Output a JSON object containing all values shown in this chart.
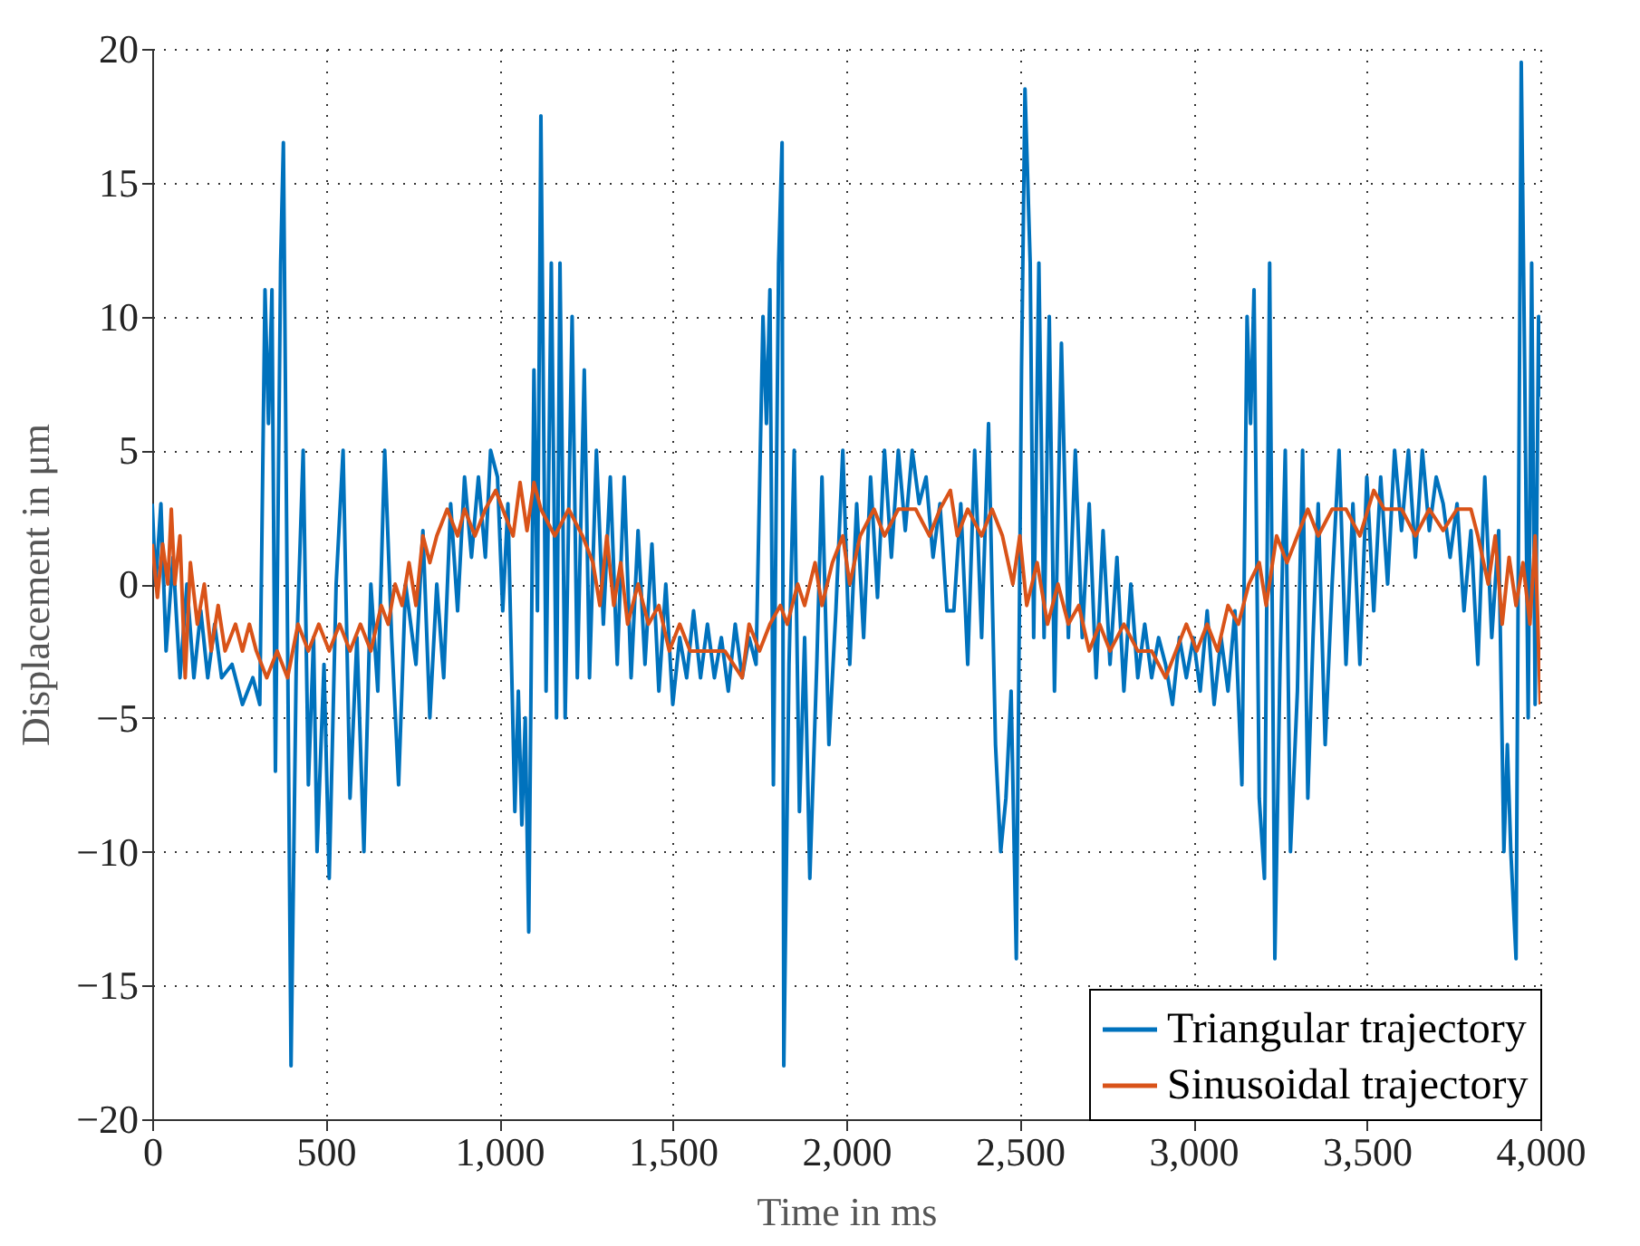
{
  "chart_data": {
    "type": "line",
    "xlabel": "Time in ms",
    "ylabel": "Displacement in μm",
    "xlim": [
      0,
      4000
    ],
    "ylim": [
      -20,
      20
    ],
    "xticks": [
      0,
      500,
      {
        "value": 1000,
        "label": "1,000"
      },
      {
        "value": 1500,
        "label": "1,500"
      },
      {
        "value": 2000,
        "label": "2,000"
      },
      {
        "value": 2500,
        "label": "2,500"
      },
      {
        "value": 3000,
        "label": "3,000"
      },
      {
        "value": 3500,
        "label": "3,500"
      },
      {
        "value": 4000,
        "label": "4,000"
      }
    ],
    "yticks": [
      {
        "value": -20,
        "label": "−20"
      },
      {
        "value": -15,
        "label": "−15"
      },
      {
        "value": -10,
        "label": "−10"
      },
      {
        "value": -5,
        "label": "−5"
      },
      0,
      5,
      10,
      15,
      20
    ],
    "grid": true,
    "legend": "bottom right",
    "line_style": "solid",
    "series": [
      {
        "name": "Triangular trajectory",
        "color": "#0072bd",
        "x": [
          0,
          10,
          25,
          40,
          60,
          80,
          100,
          120,
          140,
          160,
          180,
          200,
          230,
          260,
          290,
          310,
          325,
          335,
          345,
          355,
          370,
          378,
          390,
          400,
          415,
          435,
          450,
          465,
          475,
          495,
          510,
          530,
          550,
          570,
          590,
          610,
          630,
          650,
          670,
          690,
          710,
          730,
          760,
          780,
          800,
          820,
          840,
          860,
          880,
          900,
          920,
          940,
          960,
          975,
          995,
          1010,
          1025,
          1045,
          1055,
          1065,
          1075,
          1085,
          1100,
          1110,
          1120,
          1135,
          1150,
          1165,
          1175,
          1190,
          1210,
          1225,
          1245,
          1260,
          1280,
          1300,
          1320,
          1340,
          1360,
          1380,
          1400,
          1420,
          1440,
          1460,
          1480,
          1500,
          1520,
          1540,
          1560,
          1580,
          1600,
          1620,
          1640,
          1660,
          1680,
          1700,
          1720,
          1740,
          1760,
          1770,
          1780,
          1790,
          1805,
          1815,
          1820,
          1835,
          1850,
          1865,
          1880,
          1895,
          1915,
          1930,
          1950,
          1970,
          1990,
          2010,
          2030,
          2050,
          2070,
          2090,
          2110,
          2130,
          2150,
          2170,
          2190,
          2210,
          2230,
          2250,
          2270,
          2290,
          2310,
          2330,
          2350,
          2370,
          2390,
          2410,
          2430,
          2445,
          2460,
          2475,
          2490,
          2505,
          2515,
          2530,
          2540,
          2555,
          2570,
          2585,
          2600,
          2620,
          2640,
          2660,
          2680,
          2700,
          2720,
          2740,
          2760,
          2780,
          2800,
          2820,
          2840,
          2860,
          2880,
          2900,
          2920,
          2940,
          2960,
          2980,
          3000,
          3020,
          3040,
          3060,
          3080,
          3100,
          3120,
          3140,
          3155,
          3165,
          3175,
          3190,
          3205,
          3220,
          3235,
          3250,
          3265,
          3280,
          3300,
          3315,
          3330,
          3345,
          3360,
          3380,
          3400,
          3420,
          3440,
          3460,
          3480,
          3500,
          3520,
          3540,
          3560,
          3580,
          3600,
          3620,
          3640,
          3660,
          3680,
          3700,
          3720,
          3740,
          3760,
          3780,
          3800,
          3820,
          3840,
          3860,
          3880,
          3895,
          3905,
          3915,
          3930,
          3945,
          3955,
          3965,
          3975,
          3985,
          3995,
          4000
        ],
        "values": [
          3,
          0,
          3,
          -2.5,
          1,
          -3.5,
          0,
          -3.5,
          -1,
          -3.5,
          -1.5,
          -3.5,
          -3,
          -4.5,
          -3.5,
          -4.5,
          11,
          6,
          11,
          -7,
          12,
          16.5,
          -2,
          -18,
          -3,
          5,
          -7.5,
          -2,
          -10,
          -3,
          -11,
          0,
          5,
          -8,
          -2,
          -10,
          0,
          -4,
          5,
          -2,
          -7.5,
          0,
          -3,
          2,
          -5,
          0,
          -3.5,
          3,
          -1,
          4,
          1,
          4,
          1,
          5,
          4,
          -1,
          3,
          -8.5,
          -4,
          -9,
          -5,
          -13,
          8,
          -1,
          17.5,
          -4,
          12,
          -5,
          12,
          -5,
          10,
          -3.5,
          8,
          -3.5,
          5,
          -1.5,
          4,
          -3,
          4,
          -3.5,
          2,
          -3,
          1.5,
          -4,
          0,
          -4.5,
          -2,
          -3.5,
          -1,
          -3.5,
          -1.5,
          -3.5,
          -2,
          -4,
          -1.5,
          -3.5,
          -2,
          -3,
          10,
          6,
          11,
          -7.5,
          12,
          16.5,
          -18,
          -3,
          5,
          -8.5,
          -2,
          -11,
          -3,
          4,
          -6,
          -1,
          5,
          -3,
          3,
          -2,
          4,
          -0.5,
          5,
          1,
          5,
          2,
          5,
          3,
          4,
          1,
          3,
          -1,
          -1,
          3,
          -3,
          5,
          -2,
          6,
          -6,
          -10,
          -8,
          -4,
          -14,
          8,
          18.5,
          12,
          -2,
          12,
          -2,
          10,
          -4,
          9,
          -2,
          5,
          -2,
          3,
          -3.5,
          2,
          -3,
          1,
          -4,
          0,
          -3.5,
          -1.5,
          -3.5,
          -2,
          -3,
          -4.5,
          -2,
          -3.5,
          -2,
          -4,
          -1,
          -4.5,
          -2,
          -4,
          -1,
          -7.5,
          10,
          6,
          11,
          -8,
          -11,
          12,
          -14,
          -3,
          5,
          -10,
          -4,
          5,
          -8,
          -2,
          3,
          -6,
          0,
          5,
          -3,
          3,
          -3,
          4,
          -1,
          4,
          0,
          5,
          2,
          5,
          1,
          5,
          2,
          4,
          3,
          1,
          3,
          -1,
          2,
          -3,
          4,
          -2,
          2,
          -10,
          -6,
          -10,
          -14,
          19.5,
          8,
          -5,
          12,
          -4.5,
          10,
          7
        ]
      },
      {
        "name": "Sinusoidal trajectory",
        "color": "#d95319",
        "x": [
          0,
          15,
          30,
          45,
          55,
          65,
          80,
          95,
          110,
          130,
          150,
          170,
          190,
          210,
          240,
          260,
          280,
          300,
          330,
          360,
          390,
          420,
          450,
          480,
          510,
          540,
          570,
          600,
          630,
          660,
          680,
          700,
          720,
          740,
          760,
          780,
          800,
          820,
          850,
          880,
          900,
          930,
          960,
          990,
          1010,
          1040,
          1060,
          1080,
          1100,
          1120,
          1160,
          1200,
          1240,
          1270,
          1290,
          1310,
          1330,
          1350,
          1370,
          1400,
          1430,
          1460,
          1490,
          1520,
          1550,
          1600,
          1650,
          1700,
          1720,
          1750,
          1780,
          1810,
          1830,
          1860,
          1880,
          1910,
          1930,
          1960,
          1990,
          2010,
          2040,
          2080,
          2110,
          2150,
          2200,
          2240,
          2270,
          2300,
          2320,
          2350,
          2390,
          2420,
          2450,
          2480,
          2500,
          2520,
          2550,
          2580,
          2610,
          2640,
          2670,
          2700,
          2730,
          2760,
          2800,
          2840,
          2880,
          2920,
          2950,
          2980,
          3010,
          3040,
          3070,
          3100,
          3130,
          3160,
          3190,
          3210,
          3240,
          3270,
          3300,
          3330,
          3360,
          3400,
          3440,
          3480,
          3520,
          3550,
          3600,
          3640,
          3680,
          3720,
          3760,
          3800,
          3820,
          3850,
          3870,
          3890,
          3910,
          3930,
          3950,
          3970,
          3985,
          4000
        ],
        "values": [
          1.5,
          -0.5,
          1.5,
          0,
          2.8,
          0,
          1.8,
          -3.5,
          0.8,
          -1.5,
          0,
          -2.5,
          -0.8,
          -2.5,
          -1.5,
          -2.5,
          -1.5,
          -2.5,
          -3.5,
          -2.5,
          -3.5,
          -1.5,
          -2.5,
          -1.5,
          -2.5,
          -1.5,
          -2.5,
          -1.5,
          -2.5,
          -0.8,
          -1.5,
          0,
          -0.8,
          0.8,
          -0.8,
          1.8,
          0.8,
          1.8,
          2.8,
          1.8,
          2.8,
          1.8,
          2.8,
          3.5,
          2.8,
          1.8,
          3.8,
          2,
          3.8,
          2.8,
          1.8,
          2.8,
          1.8,
          0.8,
          -0.8,
          1.8,
          -0.8,
          0.8,
          -1.5,
          0,
          -1.5,
          -0.8,
          -2.5,
          -1.5,
          -2.5,
          -2.5,
          -2.5,
          -3.5,
          -1.5,
          -2.5,
          -1.5,
          -0.8,
          -1.5,
          0,
          -0.8,
          0.8,
          -0.8,
          0.8,
          1.8,
          0,
          1.8,
          2.8,
          1.8,
          2.8,
          2.8,
          1.8,
          2.8,
          3.5,
          1.8,
          2.8,
          1.8,
          2.8,
          1.8,
          0,
          1.8,
          -0.8,
          0.8,
          -1.5,
          0,
          -1.5,
          -0.8,
          -2.5,
          -1.5,
          -2.5,
          -1.5,
          -2.5,
          -2.5,
          -3.5,
          -2.5,
          -1.5,
          -2.5,
          -1.5,
          -2.5,
          -0.8,
          -1.5,
          0,
          0.8,
          -0.8,
          1.8,
          0.8,
          1.8,
          2.8,
          1.8,
          2.8,
          2.8,
          1.8,
          3.5,
          2.8,
          2.8,
          1.8,
          2.8,
          2,
          2.8,
          2.8,
          1.8,
          0,
          1.8,
          -1.5,
          1,
          -0.8,
          0.8,
          -1.5,
          1.8,
          -4.5
        ]
      }
    ]
  }
}
